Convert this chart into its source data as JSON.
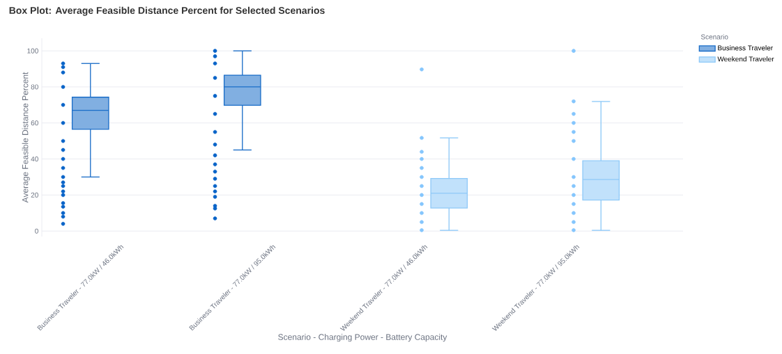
{
  "chart_data": {
    "type": "box",
    "title": "Box Plot: Average Feasible Distance Percent for Selected Scenarios",
    "xlabel": "Scenario - Charging Power - Battery Capacity",
    "ylabel": "Average Feasible Distance Percent",
    "legend_title": "Scenario",
    "categories": [
      "Business Traveler - 77.0kW / 46.0kWh",
      "Business Traveler - 77.0kW / 95.0kWh",
      "Weekend Traveler - 77.0kW / 46.0kWh",
      "Weekend Traveler - 77.0kW / 95.0kWh"
    ],
    "ylim": [
      -3,
      107
    ],
    "yticks": [
      0,
      20,
      40,
      60,
      80,
      100
    ],
    "grid": "y",
    "legend": "top right",
    "series": [
      {
        "name": "Business Traveler",
        "color": "#1a6dc8",
        "boxes": [
          {
            "low": 30,
            "q1": 56.5,
            "median": 67,
            "q3": 74.3,
            "high": 93
          },
          {
            "low": 45,
            "q1": 69.8,
            "median": 80,
            "q3": 86.5,
            "high": 100
          },
          null,
          null
        ]
      },
      {
        "name": "Weekend Traveler",
        "color": "#8ec9f8",
        "boxes": [
          null,
          null,
          {
            "low": 0.4,
            "q1": 12.8,
            "median": 21,
            "q3": 29.2,
            "high": 51.7
          },
          {
            "low": 0.4,
            "q1": 17.2,
            "median": 28.6,
            "q3": 39,
            "high": 71.9
          }
        ]
      },
      {
        "type": "scatter",
        "color": "#0a64c8",
        "x": [
          "Business Traveler - 77.0kW / 46.0kWh",
          "Business Traveler - 77.0kW / 46.0kWh",
          "Business Traveler - 77.0kW / 46.0kWh",
          "Business Traveler - 77.0kW / 46.0kWh",
          "Business Traveler - 77.0kW / 46.0kWh",
          "Business Traveler - 77.0kW / 46.0kWh",
          "Business Traveler - 77.0kW / 46.0kWh",
          "Business Traveler - 77.0kW / 46.0kWh",
          "Business Traveler - 77.0kW / 46.0kWh",
          "Business Traveler - 77.0kW / 46.0kWh",
          "Business Traveler - 77.0kW / 46.0kWh",
          "Business Traveler - 77.0kW / 46.0kWh",
          "Business Traveler - 77.0kW / 46.0kWh",
          "Business Traveler - 77.0kW / 46.0kWh",
          "Business Traveler - 77.0kW / 46.0kWh",
          "Business Traveler - 77.0kW / 46.0kWh",
          "Business Traveler - 77.0kW / 46.0kWh",
          "Business Traveler - 77.0kW / 46.0kWh",
          "Business Traveler - 77.0kW / 46.0kWh",
          "Business Traveler - 77.0kW / 46.0kWh",
          "Business Traveler - 77.0kW / 95.0kWh",
          "Business Traveler - 77.0kW / 95.0kWh",
          "Business Traveler - 77.0kW / 95.0kWh",
          "Business Traveler - 77.0kW / 95.0kWh",
          "Business Traveler - 77.0kW / 95.0kWh",
          "Business Traveler - 77.0kW / 95.0kWh",
          "Business Traveler - 77.0kW / 95.0kWh",
          "Business Traveler - 77.0kW / 95.0kWh",
          "Business Traveler - 77.0kW / 95.0kWh",
          "Business Traveler - 77.0kW / 95.0kWh",
          "Business Traveler - 77.0kW / 95.0kWh",
          "Business Traveler - 77.0kW / 95.0kWh",
          "Business Traveler - 77.0kW / 95.0kWh",
          "Business Traveler - 77.0kW / 95.0kWh",
          "Business Traveler - 77.0kW / 95.0kWh",
          "Business Traveler - 77.0kW / 95.0kWh",
          "Business Traveler - 77.0kW / 95.0kWh",
          "Business Traveler - 77.0kW / 95.0kWh"
        ],
        "values": [
          4,
          8,
          10,
          13.5,
          15.5,
          20,
          22,
          25,
          27,
          30,
          35,
          40,
          45,
          50,
          60,
          70,
          80,
          88,
          91,
          93,
          7,
          12.5,
          14,
          19,
          22,
          25,
          29,
          33,
          37,
          42,
          48,
          55,
          65,
          75,
          85,
          93,
          97,
          100
        ]
      },
      {
        "type": "scatter",
        "color": "#85c6fd",
        "x": [
          "Weekend Traveler - 77.0kW / 46.0kWh",
          "Weekend Traveler - 77.0kW / 46.0kWh",
          "Weekend Traveler - 77.0kW / 46.0kWh",
          "Weekend Traveler - 77.0kW / 46.0kWh",
          "Weekend Traveler - 77.0kW / 46.0kWh",
          "Weekend Traveler - 77.0kW / 46.0kWh",
          "Weekend Traveler - 77.0kW / 46.0kWh",
          "Weekend Traveler - 77.0kW / 46.0kWh",
          "Weekend Traveler - 77.0kW / 46.0kWh",
          "Weekend Traveler - 77.0kW / 46.0kWh",
          "Weekend Traveler - 77.0kW / 46.0kWh",
          "Weekend Traveler - 77.0kW / 46.0kWh",
          "Weekend Traveler - 77.0kW / 95.0kWh",
          "Weekend Traveler - 77.0kW / 95.0kWh",
          "Weekend Traveler - 77.0kW / 95.0kWh",
          "Weekend Traveler - 77.0kW / 95.0kWh",
          "Weekend Traveler - 77.0kW / 95.0kWh",
          "Weekend Traveler - 77.0kW / 95.0kWh",
          "Weekend Traveler - 77.0kW / 95.0kWh",
          "Weekend Traveler - 77.0kW / 95.0kWh",
          "Weekend Traveler - 77.0kW / 95.0kWh",
          "Weekend Traveler - 77.0kW / 95.0kWh",
          "Weekend Traveler - 77.0kW / 95.0kWh",
          "Weekend Traveler - 77.0kW / 95.0kWh",
          "Weekend Traveler - 77.0kW / 95.0kWh",
          "Weekend Traveler - 77.0kW / 95.0kWh"
        ],
        "values": [
          0.5,
          5,
          10,
          15,
          20,
          25,
          30,
          35,
          40,
          44,
          51.7,
          89.7,
          0.5,
          5,
          10,
          15,
          20,
          25,
          30,
          40,
          50,
          55,
          60,
          65,
          72,
          100
        ]
      }
    ]
  }
}
